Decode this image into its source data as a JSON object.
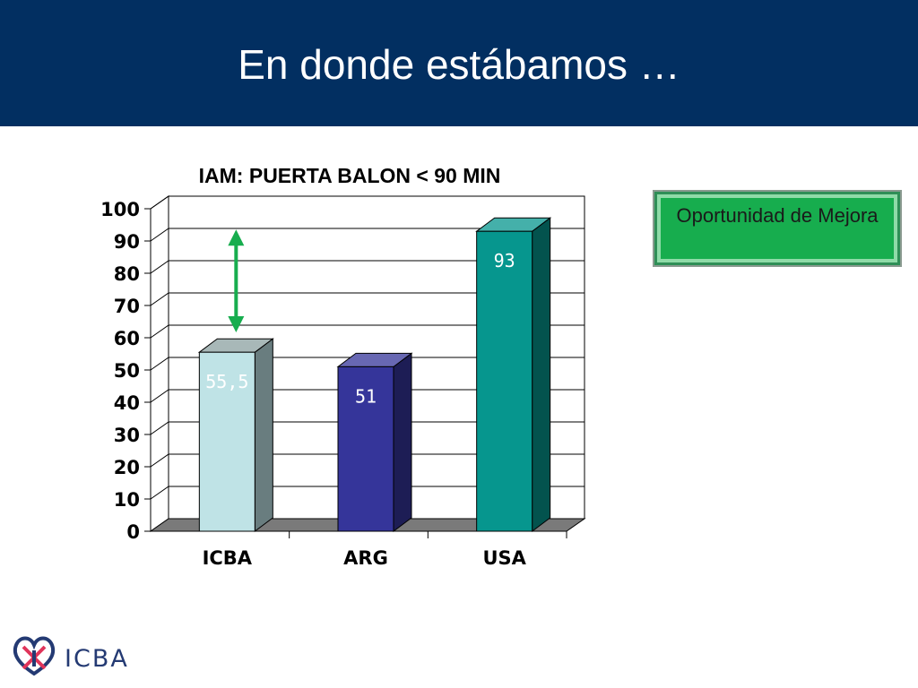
{
  "slide": {
    "title": "En donde estábamos …"
  },
  "callout": {
    "text": "Oportunidad de Mejora"
  },
  "logo": {
    "text": "ICBA"
  },
  "colors": {
    "header": "#022f61",
    "callout": "#17ad4e",
    "arrow": "#17ad4e",
    "floor": "#7a7a7a"
  },
  "chart_data": {
    "type": "bar",
    "title": "IAM: PUERTA BALON < 90 MIN",
    "categories": [
      "ICBA",
      "ARG",
      "USA"
    ],
    "values": [
      55.5,
      51,
      93
    ],
    "value_labels": [
      "55,5",
      "51",
      "93"
    ],
    "ylim": [
      0,
      100
    ],
    "yticks": [
      0,
      10,
      20,
      30,
      40,
      50,
      60,
      70,
      80,
      90,
      100
    ],
    "grid": true,
    "style": "3d",
    "bar_colors": [
      "#bfe3e6",
      "#35359a",
      "#06968e"
    ],
    "label_colors": [
      "#ffffff",
      "#ffffff",
      "#ffffff"
    ],
    "annotation": {
      "type": "double-arrow",
      "category": "ICBA",
      "from_value": 60,
      "to_value": 93,
      "color": "#17ad4e"
    }
  }
}
